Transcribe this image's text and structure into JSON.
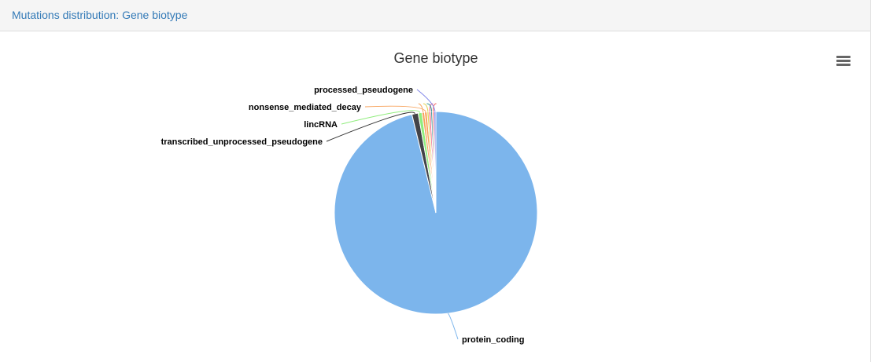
{
  "panel": {
    "heading": "Mutations distribution: Gene biotype"
  },
  "chart_menu": {
    "icon": "hamburger-menu-icon"
  },
  "chart_data": {
    "type": "pie",
    "title": "Gene biotype",
    "slices": [
      {
        "name": "protein_coding",
        "value": 96.2,
        "color": "#7cb5ec"
      },
      {
        "name": "transcribed_unprocessed_pseudogene",
        "value": 1.0,
        "color": "#434348"
      },
      {
        "name": "lincRNA",
        "value": 0.6,
        "color": "#90ed7d"
      },
      {
        "name": "",
        "value": 0.4,
        "color": "#f7a35c"
      },
      {
        "name": "nonsense_mediated_decay",
        "value": 0.4,
        "color": "#f7a35c"
      },
      {
        "name": "",
        "value": 0.3,
        "color": "#e4d354"
      },
      {
        "name": "",
        "value": 0.3,
        "color": "#f15c80"
      },
      {
        "name": "",
        "value": 0.25,
        "color": "#2b908f"
      },
      {
        "name": "",
        "value": 0.25,
        "color": "#f45b5b"
      },
      {
        "name": "processed_pseudogene",
        "value": 0.3,
        "color": "#8085e9"
      }
    ]
  }
}
